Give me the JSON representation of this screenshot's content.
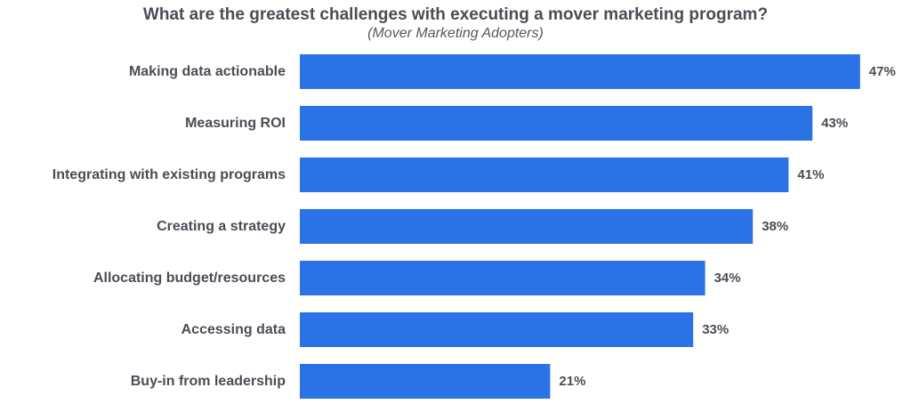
{
  "chart_data": {
    "type": "bar",
    "orientation": "horizontal",
    "title": "What are the greatest challenges with executing a mover marketing program?",
    "subtitle": "(Mover Marketing Adopters)",
    "categories": [
      "Making data actionable",
      "Measuring ROI",
      "Integrating with existing programs",
      "Creating a strategy",
      "Allocating budget/resources",
      "Accessing data",
      "Buy-in from leadership"
    ],
    "values": [
      47,
      43,
      41,
      38,
      34,
      33,
      21
    ],
    "value_labels": [
      "47%",
      "43%",
      "41%",
      "38%",
      "34%",
      "33%",
      "21%"
    ],
    "unit": "%",
    "xlabel": "",
    "ylabel": "",
    "grid": false,
    "legend": "none",
    "bar_color": "#2b72e6"
  }
}
